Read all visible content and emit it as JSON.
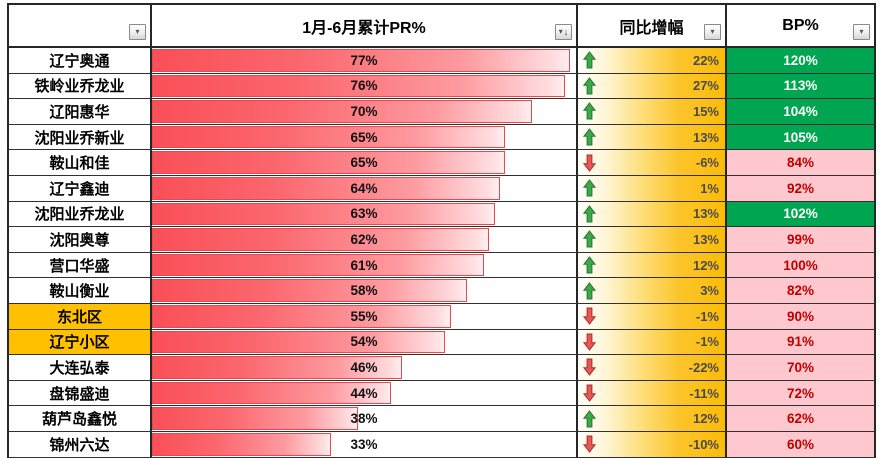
{
  "table": {
    "columns": [
      {
        "label": "",
        "filter_icon": "filter-dropdown"
      },
      {
        "label": "1月-6月累计PR%",
        "filter_icon": "filter-dropdown-sorted-descending"
      },
      {
        "label": "同比增幅",
        "filter_icon": "filter-dropdown"
      },
      {
        "label": "BP%",
        "filter_icon": "filter-dropdown"
      }
    ],
    "rows": [
      {
        "name": "辽宁奥通",
        "highlight": false,
        "pr": "77%",
        "pr_bar_pct": 98.7,
        "yoy": "22%",
        "yoy_dir": "up",
        "bp": "120%",
        "bp_status": "good"
      },
      {
        "name": "铁岭业乔龙业",
        "highlight": false,
        "pr": "76%",
        "pr_bar_pct": 97.4,
        "yoy": "27%",
        "yoy_dir": "up",
        "bp": "113%",
        "bp_status": "good"
      },
      {
        "name": "辽阳惠华",
        "highlight": false,
        "pr": "70%",
        "pr_bar_pct": 89.7,
        "yoy": "15%",
        "yoy_dir": "up",
        "bp": "104%",
        "bp_status": "good"
      },
      {
        "name": "沈阳业乔新业",
        "highlight": false,
        "pr": "65%",
        "pr_bar_pct": 83.3,
        "yoy": "13%",
        "yoy_dir": "up",
        "bp": "105%",
        "bp_status": "good"
      },
      {
        "name": "鞍山和佳",
        "highlight": false,
        "pr": "65%",
        "pr_bar_pct": 83.3,
        "yoy": "-6%",
        "yoy_dir": "down",
        "bp": "84%",
        "bp_status": "bad"
      },
      {
        "name": "辽宁鑫迪",
        "highlight": false,
        "pr": "64%",
        "pr_bar_pct": 82.1,
        "yoy": "1%",
        "yoy_dir": "up",
        "bp": "92%",
        "bp_status": "bad"
      },
      {
        "name": "沈阳业乔龙业",
        "highlight": false,
        "pr": "63%",
        "pr_bar_pct": 80.8,
        "yoy": "13%",
        "yoy_dir": "up",
        "bp": "102%",
        "bp_status": "good"
      },
      {
        "name": "沈阳奥尊",
        "highlight": false,
        "pr": "62%",
        "pr_bar_pct": 79.5,
        "yoy": "13%",
        "yoy_dir": "up",
        "bp": "99%",
        "bp_status": "bad"
      },
      {
        "name": "营口华盛",
        "highlight": false,
        "pr": "61%",
        "pr_bar_pct": 78.2,
        "yoy": "12%",
        "yoy_dir": "up",
        "bp": "100%",
        "bp_status": "bad"
      },
      {
        "name": "鞍山衡业",
        "highlight": false,
        "pr": "58%",
        "pr_bar_pct": 74.4,
        "yoy": "3%",
        "yoy_dir": "up",
        "bp": "82%",
        "bp_status": "bad"
      },
      {
        "name": "东北区",
        "highlight": true,
        "pr": "55%",
        "pr_bar_pct": 70.5,
        "yoy": "-1%",
        "yoy_dir": "down",
        "bp": "90%",
        "bp_status": "bad"
      },
      {
        "name": "辽宁小区",
        "highlight": true,
        "pr": "54%",
        "pr_bar_pct": 69.2,
        "yoy": "-1%",
        "yoy_dir": "down",
        "bp": "91%",
        "bp_status": "bad"
      },
      {
        "name": "大连弘泰",
        "highlight": false,
        "pr": "46%",
        "pr_bar_pct": 59.0,
        "yoy": "-22%",
        "yoy_dir": "down",
        "bp": "70%",
        "bp_status": "bad"
      },
      {
        "name": "盘锦盛迪",
        "highlight": false,
        "pr": "44%",
        "pr_bar_pct": 56.4,
        "yoy": "-11%",
        "yoy_dir": "down",
        "bp": "72%",
        "bp_status": "bad"
      },
      {
        "name": "葫芦岛鑫悦",
        "highlight": false,
        "pr": "38%",
        "pr_bar_pct": 48.7,
        "yoy": "12%",
        "yoy_dir": "up",
        "bp": "62%",
        "bp_status": "bad"
      },
      {
        "name": "锦州六达",
        "highlight": false,
        "pr": "33%",
        "pr_bar_pct": 42.3,
        "yoy": "-10%",
        "yoy_dir": "down",
        "bp": "60%",
        "bp_status": "bad"
      }
    ]
  },
  "icons": {
    "filter_dropdown_glyph": "▾",
    "sort_descending_glyph": "↓"
  },
  "colors": {
    "bar_red": "#FA4F57",
    "bar_border_red": "#F1444B",
    "yoy_gold": "#FBBB07",
    "highlight_gold": "#FFC000",
    "bp_good_green": "#00A551",
    "bp_bad_pink": "#FFC7CE",
    "bp_bad_text": "#C00000",
    "up_arrow_green": "#3FA64B",
    "down_arrow_red": "#E05A5A"
  }
}
